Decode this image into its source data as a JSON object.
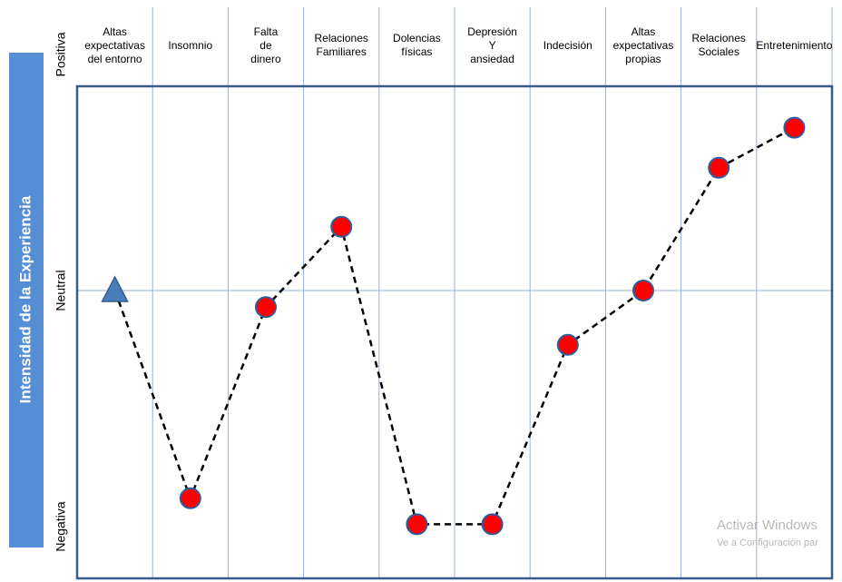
{
  "chart_data": {
    "type": "line",
    "y_label": "Intensidad de la Experiencia",
    "categories": [
      "Altas\nexpectativas\ndel entorno",
      "Insomnio",
      "Falta\nde\ndinero",
      "Relaciones\nFamiliares",
      "Dolencias\nfísicas",
      "Depresión\nY\nansiedad",
      "Indecisión",
      "Altas\nexpectativas\npropias",
      "Relaciones\nSociales",
      "Entretenimiento"
    ],
    "values": [
      0,
      -0.88,
      -0.07,
      0.27,
      -0.99,
      -0.99,
      -0.23,
      0,
      0.52,
      0.69
    ],
    "markers": [
      "triangle",
      "circle",
      "circle",
      "circle",
      "circle",
      "circle",
      "circle",
      "circle",
      "circle",
      "circle"
    ],
    "color": "#ff0000",
    "ylim": [
      -1,
      1
    ],
    "yticks": [
      {
        "value": 1,
        "label": "Positiva"
      },
      {
        "value": 0,
        "label": "Neutral"
      },
      {
        "value": -1,
        "label": "Negativa"
      }
    ],
    "watermark": [
      "Activar Windows",
      "Ve a Configuración par"
    ]
  }
}
